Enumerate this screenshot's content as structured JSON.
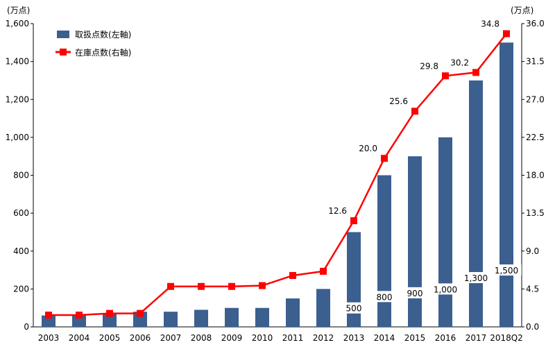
{
  "chart_data": {
    "type": "bar+line",
    "categories": [
      "2003",
      "2004",
      "2005",
      "2006",
      "2007",
      "2008",
      "2009",
      "2010",
      "2011",
      "2012",
      "2013",
      "2014",
      "2015",
      "2016",
      "2017",
      "2018Q2"
    ],
    "series": [
      {
        "name": "取扱点数(左軸)",
        "type": "bar",
        "axis": "left",
        "color": "#3b5f8f",
        "values": [
          60,
          65,
          70,
          80,
          80,
          90,
          100,
          100,
          150,
          200,
          500,
          800,
          900,
          1000,
          1300,
          1500
        ],
        "labels": [
          "",
          "",
          "",
          "",
          "",
          "",
          "",
          "",
          "",
          "",
          "500",
          "800",
          "900",
          "1,000",
          "1,300",
          "1,500"
        ]
      },
      {
        "name": "在庫点数(右軸)",
        "type": "line",
        "axis": "right",
        "color": "#ff0000",
        "values": [
          1.4,
          1.4,
          1.6,
          1.6,
          4.8,
          4.8,
          4.8,
          4.9,
          6.1,
          6.6,
          12.6,
          20.0,
          25.6,
          29.8,
          30.2,
          34.8
        ],
        "labels": [
          "",
          "",
          "",
          "",
          "",
          "",
          "",
          "",
          "",
          "",
          "12.6",
          "20.0",
          "25.6",
          "29.8",
          "30.2",
          "34.8"
        ]
      }
    ],
    "left_axis": {
      "unit": "(万点)",
      "ylim": [
        0,
        1600
      ],
      "ticks": [
        0,
        200,
        400,
        600,
        800,
        1000,
        1200,
        1400,
        1600
      ],
      "tick_labels": [
        "0",
        "200",
        "400",
        "600",
        "800",
        "1,000",
        "1,200",
        "1,400",
        "1,600"
      ]
    },
    "right_axis": {
      "unit": "(万点)",
      "ylim": [
        0,
        36
      ],
      "ticks": [
        0,
        4.5,
        9,
        13.5,
        18,
        22.5,
        27,
        31.5,
        36
      ],
      "tick_labels": [
        "0.0",
        "4.5",
        "9.0",
        "13.5",
        "18.0",
        "22.5",
        "27.0",
        "31.5",
        "36.0"
      ]
    },
    "legend": {
      "position": "top-left"
    },
    "grid": false
  }
}
